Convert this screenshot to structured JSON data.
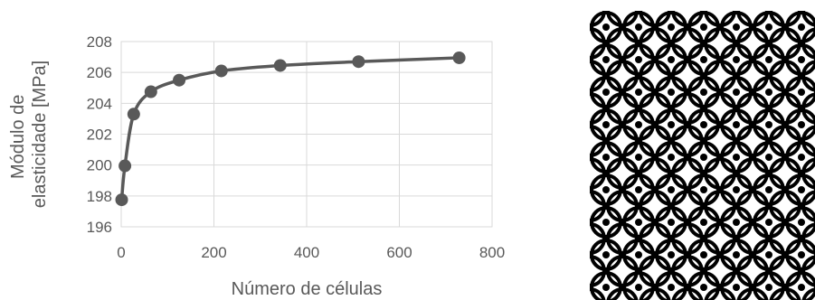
{
  "chart_data": {
    "type": "line",
    "title": "",
    "xlabel": "Número de células",
    "ylabel_lines": [
      "Módulo de",
      "elasticidade [MPa]"
    ],
    "x": [
      1,
      8,
      27,
      64,
      125,
      216,
      343,
      512,
      729
    ],
    "series": [
      {
        "values": [
          197.75,
          199.95,
          203.3,
          204.75,
          205.5,
          206.1,
          206.45,
          206.7,
          206.95
        ]
      }
    ],
    "xlim": [
      0,
      800
    ],
    "ylim": [
      196,
      208
    ],
    "xticks": [
      "0",
      "200",
      "400",
      "600",
      "800"
    ],
    "yticks": [
      "196",
      "198",
      "200",
      "202",
      "204",
      "206",
      "208"
    ],
    "grid": true,
    "smooth": true,
    "legend": "none",
    "colors": {
      "line": "#595959",
      "marker": "#595959",
      "grid": "#d9d9d9",
      "text": "#595959"
    }
  },
  "side_image": {
    "name": "cellular-lattice-pattern"
  }
}
